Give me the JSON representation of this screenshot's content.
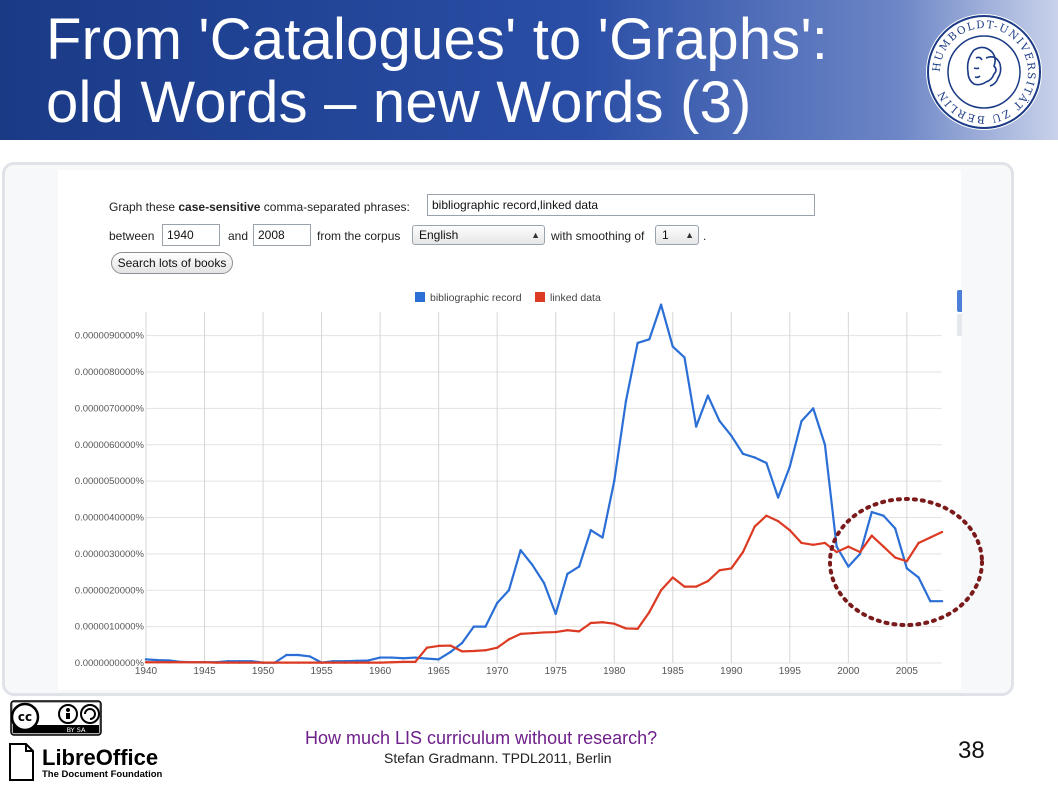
{
  "slide": {
    "title_line1": "From 'Catalogues' to 'Graphs':",
    "title_line2": "old Words – new Words (3)",
    "page_number": "38",
    "footer_title": "How much LIS curriculum without research?",
    "footer_subtitle": "Stefan Gradmann. TPDL2011, Berlin"
  },
  "logo": {
    "ring_text": "HUMBOLDT-UNIVERSITÄT ZU BERLIN",
    "color": "#1a3a86"
  },
  "license": {
    "cc_label": "cc",
    "by_sa": "BY  SA",
    "libreoffice_name": "LibreOffice",
    "libreoffice_tagline": "The Document Foundation"
  },
  "form": {
    "graph_prefix": "Graph these ",
    "graph_bold": "case-sensitive",
    "graph_suffix": " comma-separated phrases:",
    "phrases_value": "bibliographic record,linked data",
    "between_label": "between",
    "start_year": "1940",
    "and_label": "and",
    "end_year": "2008",
    "corpus_label": "from the corpus",
    "corpus_value": "English",
    "smoothing_label": "with smoothing of",
    "smoothing_value": "1",
    "period": ".",
    "search_button": "Search lots of books"
  },
  "colors": {
    "blue": "#2b6fd6",
    "red": "#dc3a22",
    "circle": "#7a1a1a"
  },
  "chart_data": {
    "type": "line",
    "xlim": [
      1940,
      2008
    ],
    "ylim": [
      0,
      9.65e-06
    ],
    "y_ticks": [
      0,
      1e-06,
      2e-06,
      3e-06,
      4e-06,
      5e-06,
      6e-06,
      7e-06,
      8e-06,
      9e-06
    ],
    "y_tick_labels": [
      "0.0000000000%",
      "0.0000010000%",
      "0.0000020000%",
      "0.0000030000%",
      "0.0000040000%",
      "0.0000050000%",
      "0.0000060000%",
      "0.0000070000%",
      "0.0000080000%",
      "0.0000090000%"
    ],
    "x_ticks": [
      1940,
      1945,
      1950,
      1955,
      1960,
      1965,
      1970,
      1975,
      1980,
      1985,
      1990,
      1995,
      2000,
      2005
    ],
    "x_tick_labels": [
      "1940",
      "1945",
      "1950",
      "1955",
      "1960",
      "1965",
      "1970",
      "1975",
      "1980",
      "1985",
      "1990",
      "1995",
      "2000",
      "2005"
    ],
    "grid": true,
    "legend_position": "top",
    "x": [
      1940,
      1941,
      1942,
      1943,
      1944,
      1945,
      1946,
      1947,
      1948,
      1949,
      1950,
      1951,
      1952,
      1953,
      1954,
      1955,
      1956,
      1957,
      1958,
      1959,
      1960,
      1961,
      1962,
      1963,
      1964,
      1965,
      1966,
      1967,
      1968,
      1969,
      1970,
      1971,
      1972,
      1973,
      1974,
      1975,
      1976,
      1977,
      1978,
      1979,
      1980,
      1981,
      1982,
      1983,
      1984,
      1985,
      1986,
      1987,
      1988,
      1989,
      1990,
      1991,
      1992,
      1993,
      1994,
      1995,
      1996,
      1997,
      1998,
      1999,
      2000,
      2001,
      2002,
      2003,
      2004,
      2005,
      2006,
      2007,
      2008
    ],
    "series": [
      {
        "name": "bibliographic record",
        "values": [
          1e-07,
          8e-08,
          7e-08,
          3e-08,
          2e-08,
          2e-08,
          2e-08,
          5e-08,
          5e-08,
          5e-08,
          1e-08,
          1e-08,
          2.2e-07,
          2.2e-07,
          1.8e-07,
          1e-08,
          5e-08,
          5e-08,
          6e-08,
          7e-08,
          1.5e-07,
          1.5e-07,
          1.3e-07,
          1.5e-07,
          1.2e-07,
          1e-07,
          3e-07,
          5.5e-07,
          1e-06,
          1e-06,
          1.65e-06,
          2e-06,
          3.1e-06,
          2.7e-06,
          2.2e-06,
          1.35e-06,
          2.45e-06,
          2.65e-06,
          3.65e-06,
          3.45e-06,
          5e-06,
          7.2e-06,
          8.8e-06,
          8.9e-06,
          9.85e-06,
          8.7e-06,
          8.4e-06,
          6.5e-06,
          7.35e-06,
          6.65e-06,
          6.25e-06,
          5.75e-06,
          5.65e-06,
          5.5e-06,
          4.55e-06,
          5.4e-06,
          6.65e-06,
          7e-06,
          6e-06,
          3.2e-06,
          2.65e-06,
          3e-06,
          4.15e-06,
          4.05e-06,
          3.7e-06,
          2.6e-06,
          2.35e-06,
          1.7e-06,
          1.7e-06
        ]
      },
      {
        "name": "linked data",
        "values": [
          2e-08,
          2e-08,
          2e-08,
          2e-08,
          2e-08,
          2e-08,
          1e-08,
          1e-08,
          1e-08,
          1e-08,
          1e-08,
          1e-08,
          1e-08,
          1e-08,
          1e-08,
          1e-08,
          1e-08,
          1e-08,
          1e-08,
          1e-08,
          1e-08,
          2e-08,
          3e-08,
          3e-08,
          4.2e-07,
          4.7e-07,
          4.8e-07,
          3.2e-07,
          3.3e-07,
          3.5e-07,
          4.2e-07,
          6.5e-07,
          8e-07,
          8.2e-07,
          8.4e-07,
          8.5e-07,
          9e-07,
          8.7e-07,
          1.1e-06,
          1.12e-06,
          1.08e-06,
          9.5e-07,
          9.4e-07,
          1.4e-06,
          2e-06,
          2.35e-06,
          2.1e-06,
          2.1e-06,
          2.25e-06,
          2.55e-06,
          2.6e-06,
          3.05e-06,
          3.75e-06,
          4.05e-06,
          3.9e-06,
          3.65e-06,
          3.3e-06,
          3.25e-06,
          3.3e-06,
          3.05e-06,
          3.2e-06,
          3.05e-06,
          3.5e-06,
          3.2e-06,
          2.9e-06,
          2.8e-06,
          3.3e-06,
          3.45e-06,
          3.6e-06
        ]
      }
    ]
  }
}
